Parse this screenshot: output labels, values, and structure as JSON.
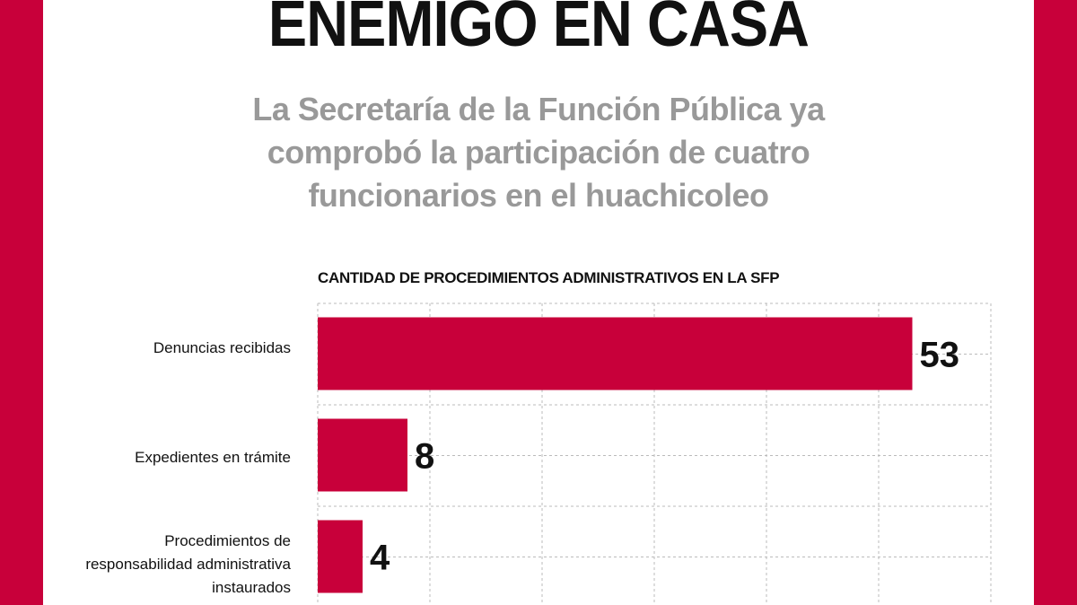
{
  "headline": "ENEMIGO EN CASA",
  "subtitle": "La Secretaría de la Función Pública ya comprobó la participación de cuatro funcionarios en el huachicoleo",
  "colors": {
    "accent": "#c8003a",
    "subtitle": "#999999",
    "text": "#111111"
  },
  "chart_data": {
    "type": "bar",
    "orientation": "horizontal",
    "title": "CANTIDAD DE PROCEDIMIENTOS ADMINISTRATIVOS EN LA SFP",
    "categories": [
      "Denuncias recibidas",
      "Expedientes en trámite",
      "Procedimientos de responsabilidad administrativa instaurados"
    ],
    "values": [
      53,
      8,
      4
    ],
    "xlim": [
      0,
      60
    ],
    "grid": "dashed",
    "bar_color": "#c8003a"
  }
}
